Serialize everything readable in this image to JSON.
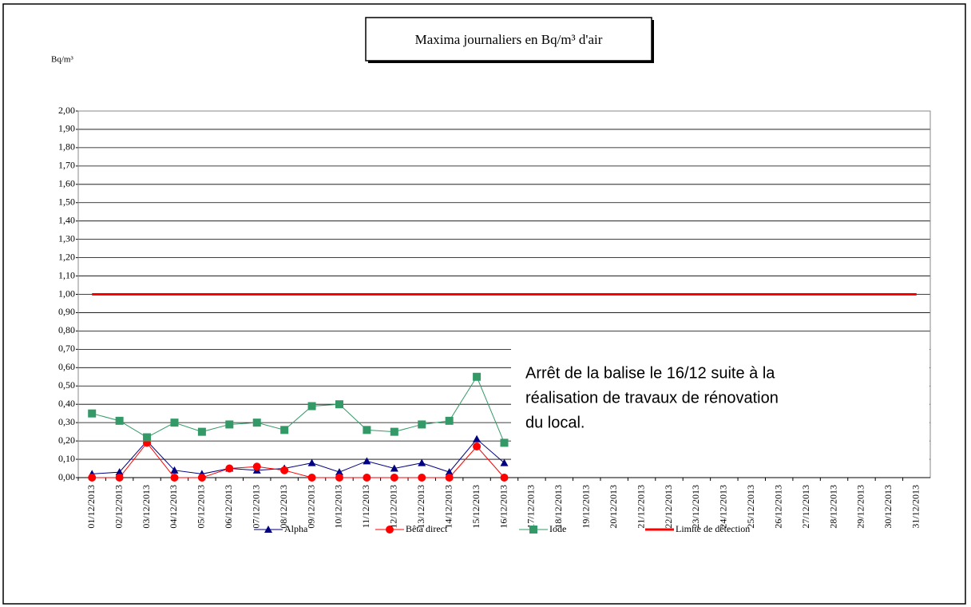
{
  "chart_data": {
    "type": "line",
    "title": "Maxima journaliers en Bq/m³ d'air",
    "y_label": "Bq/m³",
    "annotation": [
      "Arrêt de la balise le 16/12 suite à la",
      "réalisation de travaux de rénovation",
      "du local."
    ],
    "categories": [
      "01/12/2013",
      "02/12/2013",
      "03/12/2013",
      "04/12/2013",
      "05/12/2013",
      "06/12/2013",
      "07/12/2013",
      "08/12/2013",
      "09/12/2013",
      "10/12/2013",
      "11/12/2013",
      "12/12/2013",
      "13/12/2013",
      "14/12/2013",
      "15/12/2013",
      "16/12/2013",
      "17/12/2013",
      "18/12/2013",
      "19/12/2013",
      "20/12/2013",
      "21/12/2013",
      "22/12/2013",
      "23/12/2013",
      "24/12/2013",
      "25/12/2013",
      "26/12/2013",
      "27/12/2013",
      "28/12/2013",
      "29/12/2013",
      "30/12/2013",
      "31/12/2013"
    ],
    "series": [
      {
        "name": "Alpha",
        "color": "#000080",
        "marker": "triangle",
        "values": [
          0.02,
          0.03,
          0.2,
          0.04,
          0.02,
          0.05,
          0.04,
          0.05,
          0.08,
          0.03,
          0.09,
          0.05,
          0.08,
          0.03,
          0.21,
          0.08,
          null,
          null,
          null,
          null,
          null,
          null,
          null,
          null,
          null,
          null,
          null,
          null,
          null,
          null,
          null
        ]
      },
      {
        "name": "Bêta direct",
        "color": "#ff0000",
        "marker": "circle",
        "values": [
          0,
          0,
          0.19,
          0,
          0,
          0.05,
          0.06,
          0.04,
          0,
          0,
          0,
          0,
          0,
          0,
          0.17,
          0,
          null,
          null,
          null,
          null,
          null,
          null,
          null,
          null,
          null,
          null,
          null,
          null,
          null,
          null,
          null
        ]
      },
      {
        "name": "Iode",
        "color": "#339966",
        "marker": "square",
        "values": [
          0.35,
          0.31,
          0.22,
          0.3,
          0.25,
          0.29,
          0.3,
          0.26,
          0.39,
          0.4,
          0.26,
          0.25,
          0.29,
          0.31,
          0.55,
          0.19,
          null,
          null,
          null,
          null,
          null,
          null,
          null,
          null,
          null,
          null,
          null,
          null,
          null,
          null,
          null
        ]
      },
      {
        "name": "Limite de détection",
        "color": "#ff0000",
        "marker": "none",
        "width": 3,
        "values": [
          1,
          1,
          1,
          1,
          1,
          1,
          1,
          1,
          1,
          1,
          1,
          1,
          1,
          1,
          1,
          1,
          1,
          1,
          1,
          1,
          1,
          1,
          1,
          1,
          1,
          1,
          1,
          1,
          1,
          1,
          1
        ]
      }
    ],
    "ylim": [
      0,
      2
    ],
    "yticks": [
      {
        "value": 0,
        "label": "0,00"
      },
      {
        "value": 0.1,
        "label": "0,10"
      },
      {
        "value": 0.2,
        "label": "0,20"
      },
      {
        "value": 0.3,
        "label": "0,30"
      },
      {
        "value": 0.4,
        "label": "0,40"
      },
      {
        "value": 0.5,
        "label": "0,50"
      },
      {
        "value": 0.6,
        "label": "0,60"
      },
      {
        "value": 0.7,
        "label": "0,70"
      },
      {
        "value": 0.8,
        "label": "0,80"
      },
      {
        "value": 0.9,
        "label": "0,90"
      },
      {
        "value": 1,
        "label": "1,00"
      },
      {
        "value": 1.1,
        "label": "1,10"
      },
      {
        "value": 1.2,
        "label": "1,20"
      },
      {
        "value": 1.3,
        "label": "1,30"
      },
      {
        "value": 1.4,
        "label": "1,40"
      },
      {
        "value": 1.5,
        "label": "1,50"
      },
      {
        "value": 1.6,
        "label": "1,60"
      },
      {
        "value": 1.7,
        "label": "1,70"
      },
      {
        "value": 1.8,
        "label": "1,80"
      },
      {
        "value": 1.9,
        "label": "1,90"
      },
      {
        "value": 2,
        "label": "2,00"
      }
    ],
    "grid": true,
    "legend": "bottom"
  }
}
